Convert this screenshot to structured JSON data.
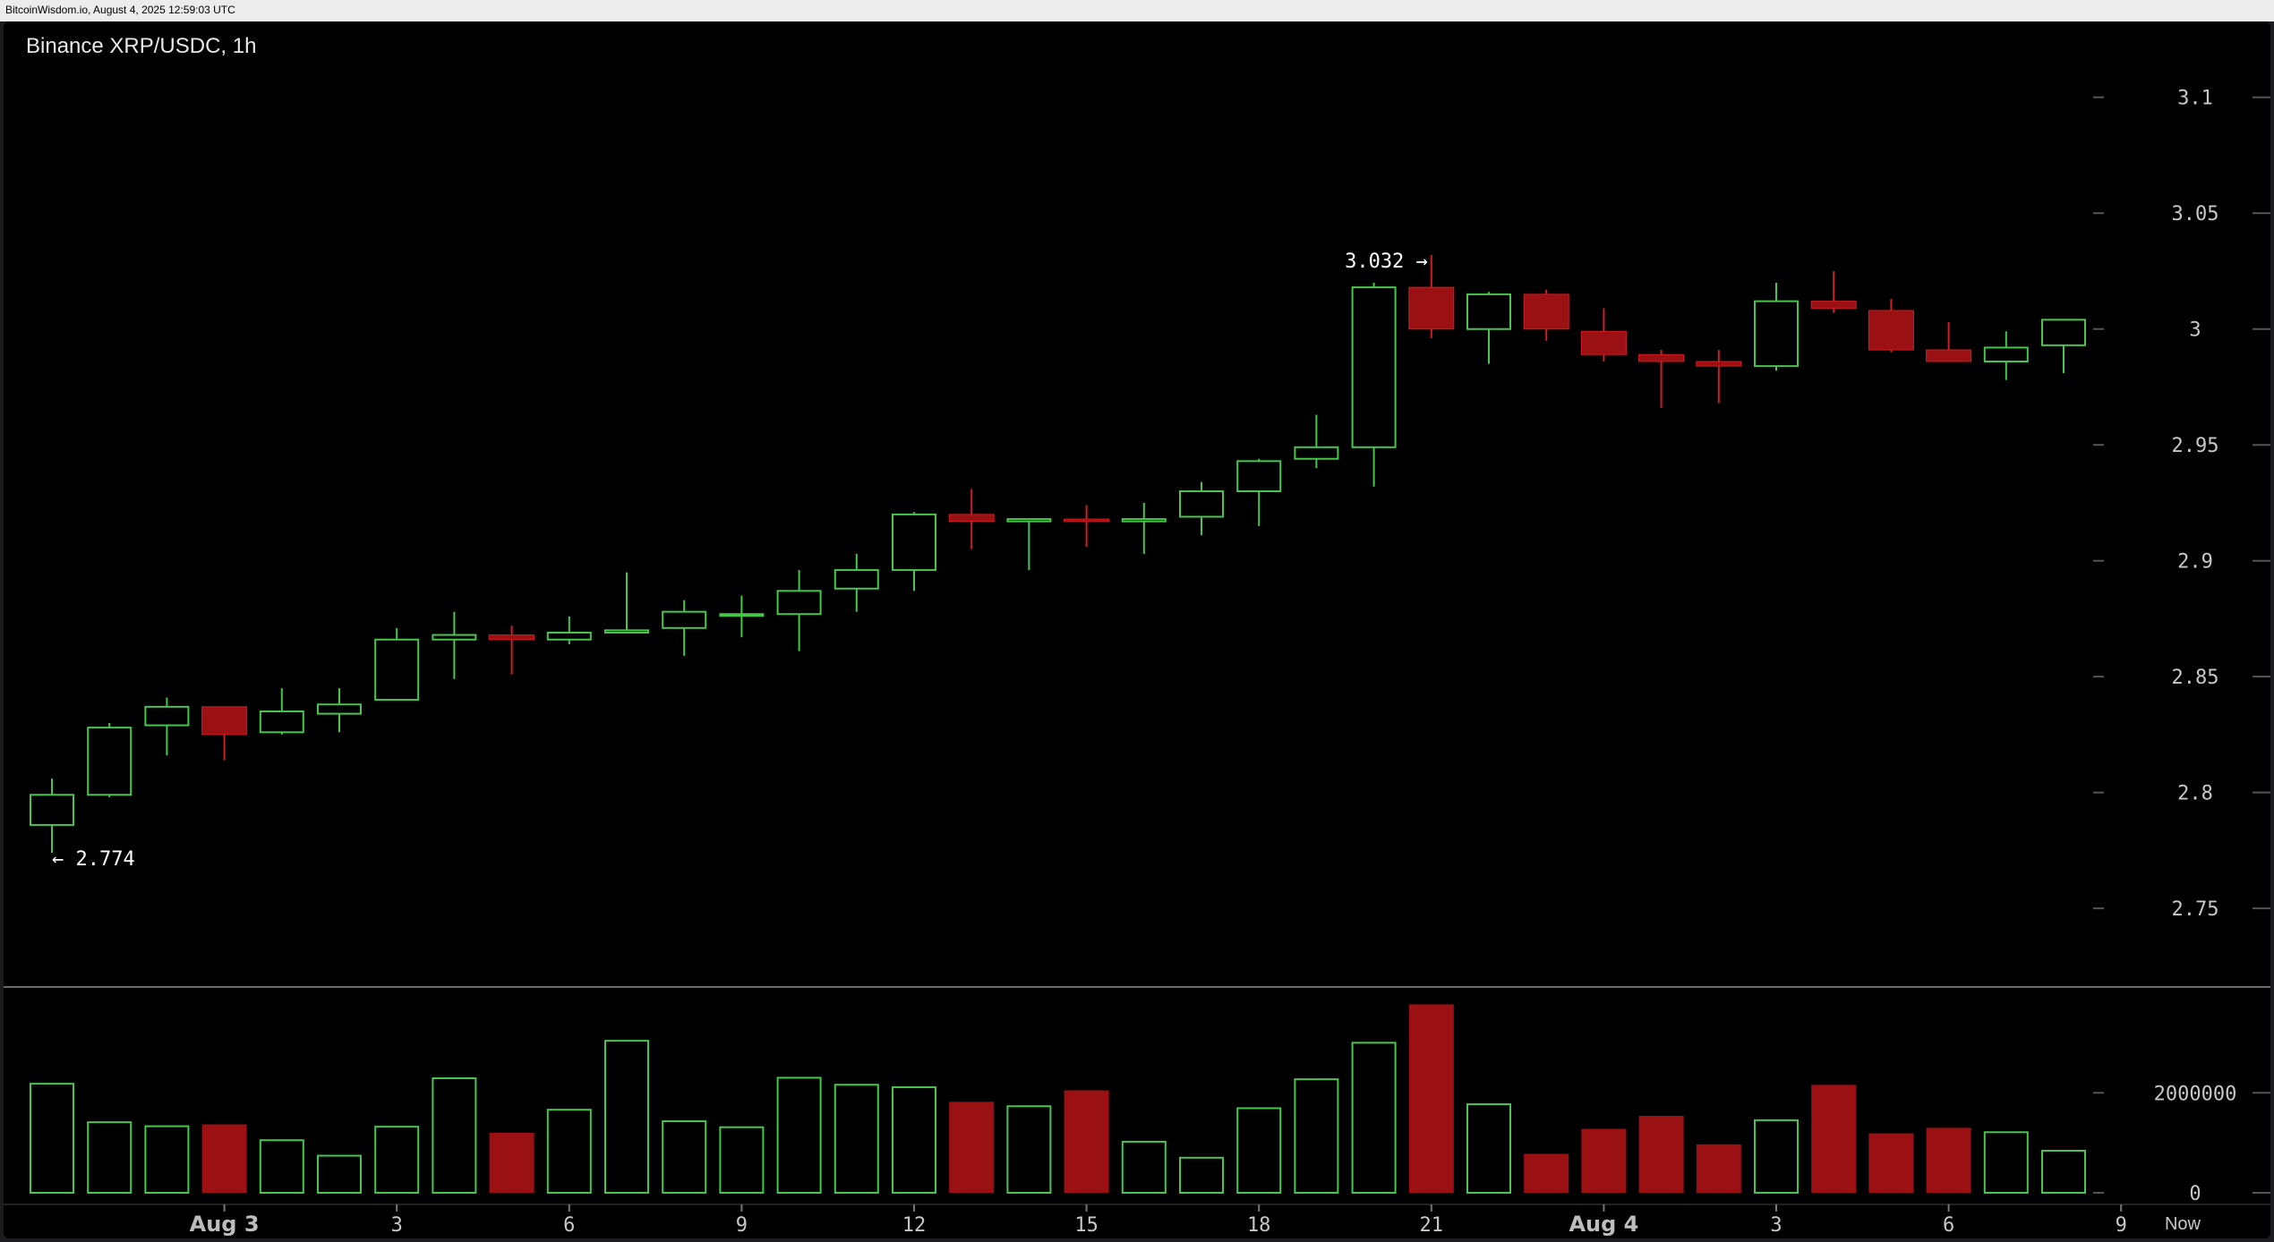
{
  "header": {
    "source": "BitcoinWisdom.io, August 4, 2025 12:59:03 UTC"
  },
  "chart_data": {
    "type": "candlestick",
    "title": "Binance XRP/USDC, 1h",
    "price_axis": {
      "ylim": [
        2.735,
        3.125
      ],
      "ticks": [
        "3.1",
        "3.05",
        "3",
        "2.95",
        "2.9",
        "2.85",
        "2.8",
        "2.75"
      ],
      "tick_values": [
        3.1,
        3.05,
        3.0,
        2.95,
        2.9,
        2.85,
        2.8,
        2.75
      ],
      "position": "right"
    },
    "volume_axis": {
      "ylim": [
        0,
        3850000
      ],
      "ticks": [
        "2000000",
        "0"
      ],
      "tick_values": [
        2000000,
        0
      ]
    },
    "x_axis": {
      "labels": [
        {
          "text": "Aug 3",
          "index": 3,
          "bold": true
        },
        {
          "text": "3",
          "index": 6,
          "bold": false
        },
        {
          "text": "6",
          "index": 9,
          "bold": false
        },
        {
          "text": "9",
          "index": 12,
          "bold": false
        },
        {
          "text": "12",
          "index": 15,
          "bold": false
        },
        {
          "text": "15",
          "index": 18,
          "bold": false
        },
        {
          "text": "18",
          "index": 21,
          "bold": false
        },
        {
          "text": "21",
          "index": 24,
          "bold": false
        },
        {
          "text": "Aug 4",
          "index": 27,
          "bold": true
        },
        {
          "text": "3",
          "index": 30,
          "bold": false
        },
        {
          "text": "6",
          "index": 33,
          "bold": false
        },
        {
          "text": "9",
          "index": 36,
          "bold": false
        }
      ],
      "now_label": "Now"
    },
    "candles": [
      {
        "o": 2.786,
        "h": 2.806,
        "l": 2.774,
        "c": 2.799,
        "v": 2200000
      },
      {
        "o": 2.799,
        "h": 2.83,
        "l": 2.798,
        "c": 2.828,
        "v": 1430000
      },
      {
        "o": 2.829,
        "h": 2.841,
        "l": 2.816,
        "c": 2.837,
        "v": 1350000
      },
      {
        "o": 2.837,
        "h": 2.837,
        "l": 2.814,
        "c": 2.825,
        "v": 1370000
      },
      {
        "o": 2.826,
        "h": 2.845,
        "l": 2.825,
        "c": 2.835,
        "v": 1070000
      },
      {
        "o": 2.834,
        "h": 2.845,
        "l": 2.826,
        "c": 2.838,
        "v": 760000
      },
      {
        "o": 2.84,
        "h": 2.871,
        "l": 2.84,
        "c": 2.866,
        "v": 1340000
      },
      {
        "o": 2.866,
        "h": 2.878,
        "l": 2.849,
        "c": 2.868,
        "v": 2310000
      },
      {
        "o": 2.868,
        "h": 2.872,
        "l": 2.851,
        "c": 2.866,
        "v": 1200000
      },
      {
        "o": 2.866,
        "h": 2.876,
        "l": 2.864,
        "c": 2.869,
        "v": 1680000
      },
      {
        "o": 2.869,
        "h": 2.895,
        "l": 2.869,
        "c": 2.87,
        "v": 3060000
      },
      {
        "o": 2.871,
        "h": 2.883,
        "l": 2.859,
        "c": 2.878,
        "v": 1450000
      },
      {
        "o": 2.877,
        "h": 2.885,
        "l": 2.867,
        "c": 2.877,
        "v": 1330000
      },
      {
        "o": 2.877,
        "h": 2.896,
        "l": 2.861,
        "c": 2.887,
        "v": 2320000
      },
      {
        "o": 2.888,
        "h": 2.903,
        "l": 2.878,
        "c": 2.896,
        "v": 2180000
      },
      {
        "o": 2.896,
        "h": 2.921,
        "l": 2.887,
        "c": 2.92,
        "v": 2130000
      },
      {
        "o": 2.92,
        "h": 2.931,
        "l": 2.905,
        "c": 2.917,
        "v": 1820000
      },
      {
        "o": 2.917,
        "h": 2.918,
        "l": 2.896,
        "c": 2.918,
        "v": 1750000
      },
      {
        "o": 2.918,
        "h": 2.924,
        "l": 2.906,
        "c": 2.917,
        "v": 2050000
      },
      {
        "o": 2.917,
        "h": 2.925,
        "l": 2.903,
        "c": 2.918,
        "v": 1040000
      },
      {
        "o": 2.919,
        "h": 2.934,
        "l": 2.911,
        "c": 2.93,
        "v": 720000
      },
      {
        "o": 2.93,
        "h": 2.944,
        "l": 2.915,
        "c": 2.943,
        "v": 1710000
      },
      {
        "o": 2.944,
        "h": 2.963,
        "l": 2.94,
        "c": 2.949,
        "v": 2290000
      },
      {
        "o": 2.949,
        "h": 3.02,
        "l": 2.932,
        "c": 3.018,
        "v": 3020000
      },
      {
        "o": 3.018,
        "h": 3.032,
        "l": 2.996,
        "c": 3.0,
        "v": 3770000
      },
      {
        "o": 3.0,
        "h": 3.016,
        "l": 2.985,
        "c": 3.015,
        "v": 1790000
      },
      {
        "o": 3.015,
        "h": 3.017,
        "l": 2.995,
        "c": 3.0,
        "v": 780000
      },
      {
        "o": 2.999,
        "h": 3.009,
        "l": 2.986,
        "c": 2.989,
        "v": 1280000
      },
      {
        "o": 2.989,
        "h": 2.991,
        "l": 2.966,
        "c": 2.986,
        "v": 1540000
      },
      {
        "o": 2.986,
        "h": 2.991,
        "l": 2.968,
        "c": 2.984,
        "v": 970000
      },
      {
        "o": 2.984,
        "h": 3.02,
        "l": 2.982,
        "c": 3.012,
        "v": 1470000
      },
      {
        "o": 3.012,
        "h": 3.025,
        "l": 3.007,
        "c": 3.009,
        "v": 2160000
      },
      {
        "o": 3.008,
        "h": 3.013,
        "l": 2.99,
        "c": 2.991,
        "v": 1190000
      },
      {
        "o": 2.991,
        "h": 3.003,
        "l": 2.986,
        "c": 2.986,
        "v": 1300000
      },
      {
        "o": 2.986,
        "h": 2.999,
        "l": 2.978,
        "c": 2.992,
        "v": 1230000
      },
      {
        "o": 2.993,
        "h": 3.004,
        "l": 2.981,
        "c": 3.004,
        "v": 860000
      }
    ],
    "annotations": [
      {
        "text": "3.032 →",
        "candle": 24,
        "type": "high"
      },
      {
        "text": "← 2.774",
        "candle": 0,
        "type": "low"
      }
    ],
    "colors": {
      "up": "#49c54e",
      "down": "#9a1013",
      "down_edge": "#d01d22",
      "grid": "#555555",
      "background": "#000000"
    }
  }
}
